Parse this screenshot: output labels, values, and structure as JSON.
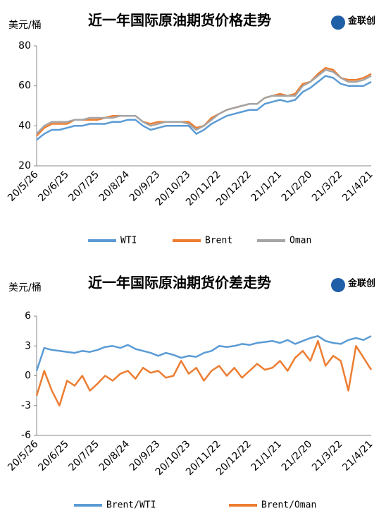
{
  "chart_data": [
    {
      "type": "line",
      "title": "近一年国际原油期货价格走势",
      "y_label": "美元/桶",
      "logo": "金联创",
      "categories": [
        "20/5/26",
        null,
        null,
        null,
        "20/6/25",
        null,
        null,
        null,
        "20/7/25",
        null,
        null,
        null,
        "20/8/24",
        null,
        null,
        null,
        "20/9/23",
        null,
        null,
        null,
        "20/10/23",
        null,
        null,
        null,
        "20/11/22",
        null,
        null,
        null,
        "20/12/22",
        null,
        null,
        null,
        "21/1/21",
        null,
        null,
        null,
        "21/2/20",
        null,
        null,
        null,
        "21/3/22",
        null,
        null,
        null,
        "21/4/21"
      ],
      "series": [
        {
          "name": "WTI",
          "color": "#5b9bd5",
          "values": [
            33,
            36,
            38,
            38,
            39,
            40,
            40,
            41,
            41,
            41,
            42,
            42,
            43,
            43,
            40,
            38,
            39,
            40,
            40,
            40,
            40,
            36,
            38,
            41,
            43,
            45,
            46,
            47,
            48,
            48,
            51,
            52,
            53,
            52,
            53,
            57,
            59,
            62,
            65,
            64,
            61,
            60,
            60,
            60,
            62
          ]
        },
        {
          "name": "Brent",
          "color": "#ed7d31",
          "values": [
            35,
            39,
            41,
            41,
            41,
            43,
            43,
            43,
            43,
            44,
            45,
            45,
            45,
            45,
            42,
            41,
            42,
            42,
            42,
            42,
            42,
            39,
            40,
            44,
            46,
            48,
            49,
            50,
            51,
            51,
            54,
            55,
            56,
            55,
            56,
            61,
            62,
            66,
            69,
            68,
            64,
            63,
            63,
            64,
            66
          ]
        },
        {
          "name": "Oman",
          "color": "#a5a5a5",
          "values": [
            36,
            40,
            42,
            42,
            42,
            43,
            43,
            44,
            44,
            44,
            44,
            45,
            45,
            45,
            42,
            40,
            41,
            42,
            42,
            42,
            41,
            38,
            40,
            43,
            46,
            48,
            49,
            50,
            51,
            51,
            54,
            55,
            55,
            55,
            55,
            60,
            62,
            65,
            68,
            67,
            64,
            62,
            62,
            63,
            65
          ]
        }
      ],
      "ylim": [
        20,
        80
      ],
      "yticks": [
        20,
        40,
        60,
        80
      ]
    },
    {
      "type": "line",
      "title": "近一年国际原油期货价差走势",
      "y_label": "美元/桶",
      "logo": "金联创",
      "categories": [
        "20/5/26",
        null,
        null,
        null,
        "20/6/25",
        null,
        null,
        null,
        "20/7/25",
        null,
        null,
        null,
        "20/8/24",
        null,
        null,
        null,
        "20/9/23",
        null,
        null,
        null,
        "20/10/23",
        null,
        null,
        null,
        "20/11/22",
        null,
        null,
        null,
        "20/12/22",
        null,
        null,
        null,
        "21/1/21",
        null,
        null,
        null,
        "21/2/20",
        null,
        null,
        null,
        "21/3/22",
        null,
        null,
        null,
        "21/4/21"
      ],
      "series": [
        {
          "name": "Brent/WTI",
          "color": "#5b9bd5",
          "values": [
            0.5,
            2.8,
            2.6,
            2.5,
            2.4,
            2.3,
            2.5,
            2.4,
            2.6,
            2.9,
            3.0,
            2.8,
            3.1,
            2.7,
            2.5,
            2.3,
            2.0,
            2.3,
            2.1,
            1.8,
            2.0,
            1.9,
            2.3,
            2.5,
            3.0,
            2.9,
            3.0,
            3.2,
            3.1,
            3.3,
            3.4,
            3.5,
            3.3,
            3.6,
            3.2,
            3.5,
            3.8,
            4.0,
            3.5,
            3.3,
            3.2,
            3.6,
            3.8,
            3.6,
            4.0
          ]
        },
        {
          "name": "Brent/Oman",
          "color": "#ed7d31",
          "values": [
            -2,
            0.5,
            -1.5,
            -3,
            -0.5,
            -1,
            0,
            -1.5,
            -0.8,
            0,
            -0.5,
            0.2,
            0.5,
            -0.3,
            0.8,
            0.3,
            0.5,
            -0.2,
            0,
            1.5,
            0.2,
            0.8,
            -0.5,
            0.5,
            1.0,
            0,
            0.8,
            -0.2,
            0.5,
            1.2,
            0.6,
            0.8,
            1.5,
            0.5,
            1.8,
            2.5,
            1.5,
            3.5,
            1.0,
            2.0,
            1.5,
            -1.5,
            3.0,
            1.8,
            0.6
          ]
        }
      ],
      "ylim": [
        -6,
        6
      ],
      "yticks": [
        -6,
        -3,
        0,
        3,
        6
      ]
    }
  ]
}
